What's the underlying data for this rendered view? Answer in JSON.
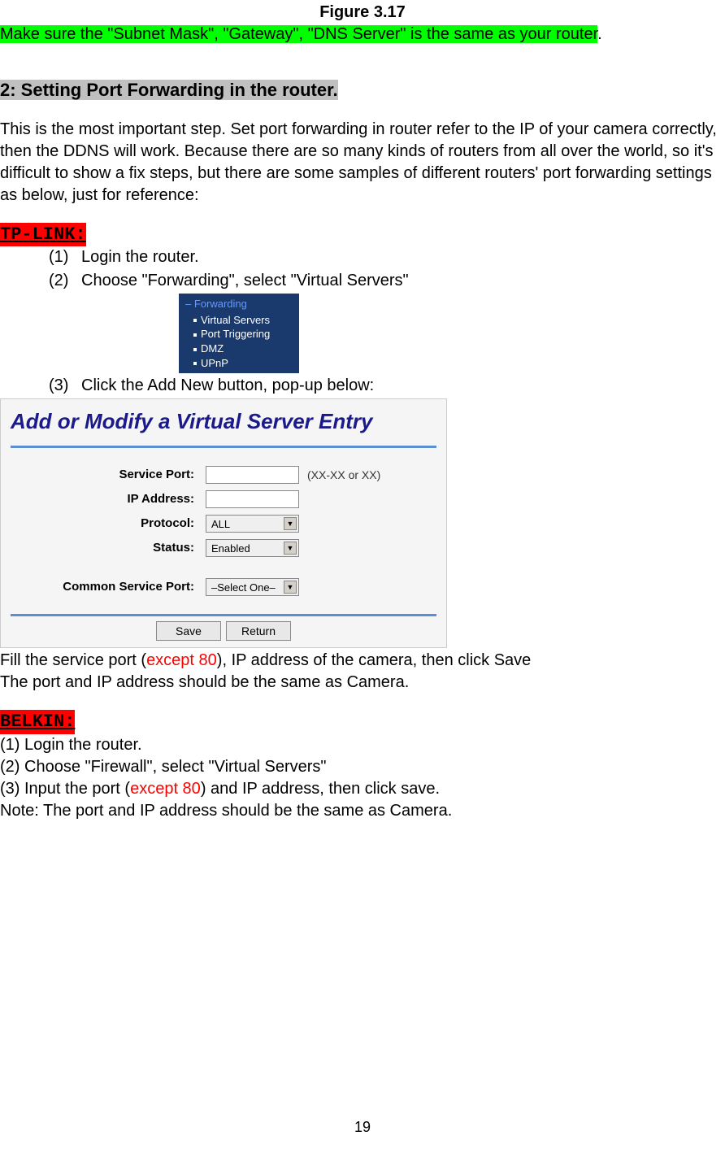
{
  "figure_caption": "Figure 3.17",
  "subnet_line": "Make sure the \"Subnet Mask\", \"Gateway\", \"DNS Server\" is the same as your router",
  "subnet_period": ".",
  "section_heading": "2: Setting Port Forwarding in the router.",
  "intro_paragraph": "This is the most important step. Set port forwarding in router refer to the IP of your camera correctly, then the DDNS will work. Because there are so many kinds of routers from all over the world, so it's difficult to show a fix steps, but there are some samples of different routers' port forwarding settings as below, just for reference:",
  "tplink_label": "TP-LINK:",
  "tplink_steps": {
    "s1_num": "(1)",
    "s1_text": "Login the router.",
    "s2_num": "(2)",
    "s2_text": "Choose \"Forwarding\", select \"Virtual Servers\"",
    "s3_num": "(3)",
    "s3_text": "Click the Add New button, pop-up below:"
  },
  "menu": {
    "header_dash": "–",
    "header": "Forwarding",
    "item1": "Virtual Servers",
    "item2": "Port Triggering",
    "item3": "DMZ",
    "item4": "UPnP"
  },
  "form": {
    "title": "Add or Modify a Virtual Server Entry",
    "service_port_label": "Service Port:",
    "service_port_hint": "(XX-XX or XX)",
    "ip_address_label": "IP Address:",
    "protocol_label": "Protocol:",
    "protocol_value": "ALL",
    "status_label": "Status:",
    "status_value": "Enabled",
    "common_service_label": "Common Service Port:",
    "common_service_value": "–Select One–",
    "save_btn": "Save",
    "return_btn": "Return"
  },
  "post_form": {
    "line1_a": "Fill the service port (",
    "line1_red": "except 80",
    "line1_b": "), IP address of the camera, then click Save",
    "line2": "The port and IP address should be the same as Camera."
  },
  "belkin_label": "BELKIN:",
  "belkin": {
    "l1": "(1) Login the router.",
    "l2": "(2) Choose \"Firewall\", select \"Virtual Servers\"",
    "l3_a": "(3) Input the port (",
    "l3_red": "except 80",
    "l3_b": ") and IP address, then click save.",
    "l4": "Note: The port and IP address should be the same as Camera."
  },
  "page_number": "19",
  "colors": {
    "green_bg": "#00ff00",
    "red_bg": "#ff0000",
    "gray_bg": "#c0c0c0",
    "red_text": "#ff0000"
  }
}
